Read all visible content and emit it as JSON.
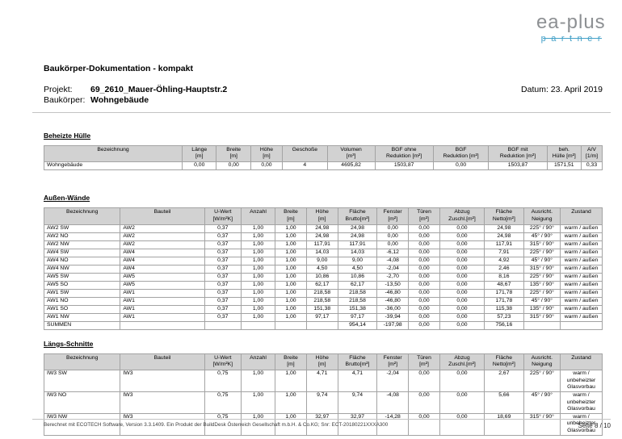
{
  "logo": {
    "name": "ea-plus",
    "subtitle": "partner",
    "colors": {
      "gray": "#8d9093",
      "blue": "#44a1c8"
    }
  },
  "header": {
    "title": "Baukörper-Dokumentation - kompakt",
    "project_label": "Projekt:",
    "project_value": "69_2610_Mauer-Öhling-Hauptstr.2",
    "building_label": "Baukörper:",
    "building_value": "Wohngebäude",
    "date": "Datum: 23. April 2019"
  },
  "colors": {
    "table_header_bg": "#d2d2d2",
    "rule_gray": "#c3c3c3"
  },
  "tables": [
    {
      "heading": "Beheizte Hülle",
      "columns": [
        {
          "label": "Bezeichnung",
          "sub": ""
        },
        {
          "label": "Länge",
          "sub": "[m]"
        },
        {
          "label": "Breite",
          "sub": "[m]"
        },
        {
          "label": "Höhe",
          "sub": "[m]"
        },
        {
          "label": "Geschoße",
          "sub": ""
        },
        {
          "label": "Volumen",
          "sub": "[m³]"
        },
        {
          "label": "BGF ohne",
          "sub": "Reduktion [m²]"
        },
        {
          "label": "BGF",
          "sub": "Reduktion [m²]"
        },
        {
          "label": "BGF mit",
          "sub": "Reduktion [m²]"
        },
        {
          "label": "beh.",
          "sub": "Hülle [m²]"
        },
        {
          "label": "A/V",
          "sub": "[1/m]"
        }
      ],
      "rows": [
        [
          "Wohngebäude",
          "0,00",
          "0,00",
          "0,00",
          "4",
          "4695,82",
          "1503,87",
          "0,00",
          "1503,87",
          "1571,51",
          "0,33"
        ]
      ]
    },
    {
      "heading": "Außen-Wände",
      "columns": [
        {
          "label": "Bezeichnung",
          "sub": ""
        },
        {
          "label": "Bauteil",
          "sub": ""
        },
        {
          "label": "U-Wert",
          "sub": "[W/m²K]"
        },
        {
          "label": "Anzahl",
          "sub": ""
        },
        {
          "label": "Breite",
          "sub": "[m]"
        },
        {
          "label": "Höhe",
          "sub": "[m]"
        },
        {
          "label": "Fläche",
          "sub": "Brutto[m²]"
        },
        {
          "label": "Fenster",
          "sub": "[m²]"
        },
        {
          "label": "Türen",
          "sub": "[m²]"
        },
        {
          "label": "Abzug",
          "sub": "Zuschl.[m²]"
        },
        {
          "label": "Fläche",
          "sub": "Netto[m²]"
        },
        {
          "label": "Ausricht.",
          "sub": "Neigung"
        },
        {
          "label": "Zustand",
          "sub": ""
        }
      ],
      "rows": [
        [
          "AW2 SW",
          "AW2",
          "0,37",
          "1,00",
          "1,00",
          "24,98",
          "24,98",
          "0,00",
          "0,00",
          "0,00",
          "24,98",
          "225° / 90°",
          "warm / außen"
        ],
        [
          "AW2 NO",
          "AW2",
          "0,37",
          "1,00",
          "1,00",
          "24,98",
          "24,98",
          "0,00",
          "0,00",
          "0,00",
          "24,98",
          "45° / 90°",
          "warm / außen"
        ],
        [
          "AW2 NW",
          "AW2",
          "0,37",
          "1,00",
          "1,00",
          "117,91",
          "117,91",
          "0,00",
          "0,00",
          "0,00",
          "117,91",
          "315° / 90°",
          "warm / außen"
        ],
        [
          "AW4 SW",
          "AW4",
          "0,37",
          "1,00",
          "1,00",
          "14,03",
          "14,03",
          "-6,12",
          "0,00",
          "0,00",
          "7,91",
          "225° / 90°",
          "warm / außen"
        ],
        [
          "AW4 NO",
          "AW4",
          "0,37",
          "1,00",
          "1,00",
          "9,00",
          "9,00",
          "-4,08",
          "0,00",
          "0,00",
          "4,92",
          "45° / 90°",
          "warm / außen"
        ],
        [
          "AW4 NW",
          "AW4",
          "0,37",
          "1,00",
          "1,00",
          "4,50",
          "4,50",
          "-2,04",
          "0,00",
          "0,00",
          "2,46",
          "315° / 90°",
          "warm / außen"
        ],
        [
          "AW5 SW",
          "AW5",
          "0,37",
          "1,00",
          "1,00",
          "10,86",
          "10,86",
          "-2,70",
          "0,00",
          "0,00",
          "8,16",
          "225° / 90°",
          "warm / außen"
        ],
        [
          "AW5 SO",
          "AW5",
          "0,37",
          "1,00",
          "1,00",
          "62,17",
          "62,17",
          "-13,50",
          "0,00",
          "0,00",
          "48,67",
          "135° / 90°",
          "warm / außen"
        ],
        [
          "AW1 SW",
          "AW1",
          "0,37",
          "1,00",
          "1,00",
          "218,58",
          "218,58",
          "-46,80",
          "0,00",
          "0,00",
          "171,78",
          "225° / 90°",
          "warm / außen"
        ],
        [
          "AW1 NO",
          "AW1",
          "0,37",
          "1,00",
          "1,00",
          "218,58",
          "218,58",
          "-46,80",
          "0,00",
          "0,00",
          "171,78",
          "45° / 90°",
          "warm / außen"
        ],
        [
          "AW1 SO",
          "AW1",
          "0,37",
          "1,00",
          "1,00",
          "151,38",
          "151,38",
          "-36,00",
          "0,00",
          "0,00",
          "115,38",
          "135° / 90°",
          "warm / außen"
        ],
        [
          "AW1 NW",
          "AW1",
          "0,37",
          "1,00",
          "1,00",
          "97,17",
          "97,17",
          "-39,94",
          "0,00",
          "0,00",
          "57,23",
          "315° / 90°",
          "warm / außen"
        ],
        [
          "SUMMEN",
          "",
          "",
          "",
          "",
          "",
          "954,14",
          "-197,98",
          "0,00",
          "0,00",
          "756,16",
          "",
          ""
        ]
      ]
    },
    {
      "heading": "Längs-Schnitte",
      "columns": [
        {
          "label": "Bezeichnung",
          "sub": ""
        },
        {
          "label": "Bauteil",
          "sub": ""
        },
        {
          "label": "U-Wert",
          "sub": "[W/m²K]"
        },
        {
          "label": "Anzahl",
          "sub": ""
        },
        {
          "label": "Breite",
          "sub": "[m]"
        },
        {
          "label": "Höhe",
          "sub": "[m]"
        },
        {
          "label": "Fläche",
          "sub": "Brutto[m²]"
        },
        {
          "label": "Fenster",
          "sub": "[m²]"
        },
        {
          "label": "Türen",
          "sub": "[m²]"
        },
        {
          "label": "Abzug",
          "sub": "Zuschl.[m²]"
        },
        {
          "label": "Fläche",
          "sub": "Netto[m²]"
        },
        {
          "label": "Ausricht.",
          "sub": "Neigung"
        },
        {
          "label": "Zustand",
          "sub": ""
        }
      ],
      "rows": [
        [
          "IW3 SW",
          "IW3",
          "0,75",
          "1,00",
          "1,00",
          "4,71",
          "4,71",
          "-2,04",
          "0,00",
          "0,00",
          "2,67",
          "225° / 90°",
          "warm / unbeheizter Glasvorbau"
        ],
        [
          "IW3 NO",
          "IW3",
          "0,75",
          "1,00",
          "1,00",
          "9,74",
          "9,74",
          "-4,08",
          "0,00",
          "0,00",
          "5,66",
          "45° / 90°",
          "warm / unbeheizter Glasvorbau"
        ],
        [
          "IW3 NW",
          "IW3",
          "0,75",
          "1,00",
          "1,00",
          "32,97",
          "32,97",
          "-14,28",
          "0,00",
          "0,00",
          "18,69",
          "315° / 90°",
          "warm / unbeheizter Glasvorbau"
        ]
      ]
    }
  ],
  "footer": {
    "left": "Berechnet mit ECOTECH Software, Version 3.3.1409. Ein Produkt der BuildDesk Österreich Gesellschaft m.b.H. & Co.KG; Snr: ECT-20180221XXXA300",
    "page": "Seite 8 / 10"
  }
}
